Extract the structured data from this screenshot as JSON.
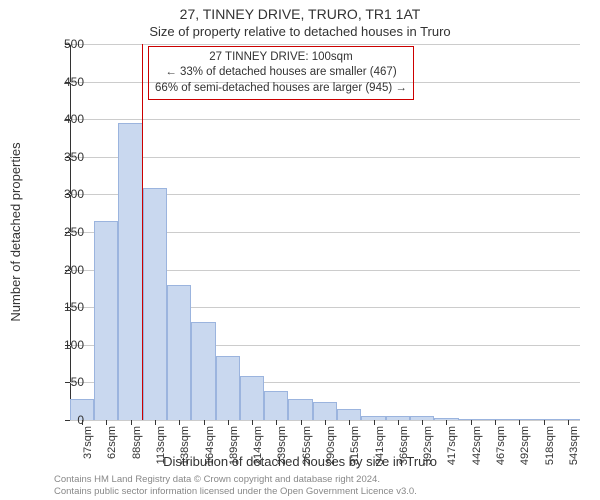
{
  "chart": {
    "type": "histogram",
    "title_main": "27, TINNEY DRIVE, TRURO, TR1 1AT",
    "title_sub": "Size of property relative to detached houses in Truro",
    "title_fontsize": 14,
    "subtitle_fontsize": 13,
    "ylabel": "Number of detached properties",
    "xlabel": "Distribution of detached houses by size in Truro",
    "label_fontsize": 13,
    "tick_fontsize": 12,
    "background_color": "#ffffff",
    "grid_color": "#cccccc",
    "axis_color": "#333333",
    "bar_fill": "#c9d8ef",
    "bar_stroke": "#9bb4de",
    "bar_width": 0.98,
    "ylim": [
      0,
      500
    ],
    "ytick_step": 50,
    "yticks": [
      0,
      50,
      100,
      150,
      200,
      250,
      300,
      350,
      400,
      450,
      500
    ],
    "xlim": [
      25,
      556
    ],
    "xtick_labels": [
      "37sqm",
      "62sqm",
      "88sqm",
      "113sqm",
      "138sqm",
      "164sqm",
      "189sqm",
      "214sqm",
      "239sqm",
      "265sqm",
      "290sqm",
      "315sqm",
      "341sqm",
      "366sqm",
      "392sqm",
      "417sqm",
      "442sqm",
      "467sqm",
      "492sqm",
      "518sqm",
      "543sqm"
    ],
    "xtick_values": [
      37,
      62,
      88,
      113,
      138,
      164,
      189,
      214,
      239,
      265,
      290,
      315,
      341,
      366,
      392,
      417,
      442,
      467,
      492,
      518,
      543
    ],
    "bins": {
      "edges": [
        25,
        50,
        75,
        101,
        126,
        151,
        177,
        202,
        227,
        252,
        278,
        303,
        328,
        354,
        379,
        404,
        430,
        455,
        480,
        506,
        531,
        556
      ],
      "counts": [
        28,
        265,
        395,
        308,
        180,
        130,
        85,
        58,
        38,
        28,
        24,
        14,
        5,
        5,
        6,
        3,
        0,
        2,
        2,
        0,
        2
      ]
    },
    "reference_line": {
      "x": 100,
      "color": "#cc0000",
      "width": 1
    },
    "annotation": {
      "lines": [
        "27 TINNEY DRIVE: 100sqm",
        "← 33% of detached houses are smaller (467)",
        "66% of semi-detached houses are larger (945) →"
      ],
      "border_color": "#cc0000",
      "fontsize": 11.5,
      "x": 100,
      "y_top": 498
    },
    "footer_lines": [
      "Contains HM Land Registry data © Crown copyright and database right 2024.",
      "Contains public sector information licensed under the Open Government Licence v3.0."
    ],
    "footer_color": "#888888",
    "footer_fontsize": 9.5
  }
}
